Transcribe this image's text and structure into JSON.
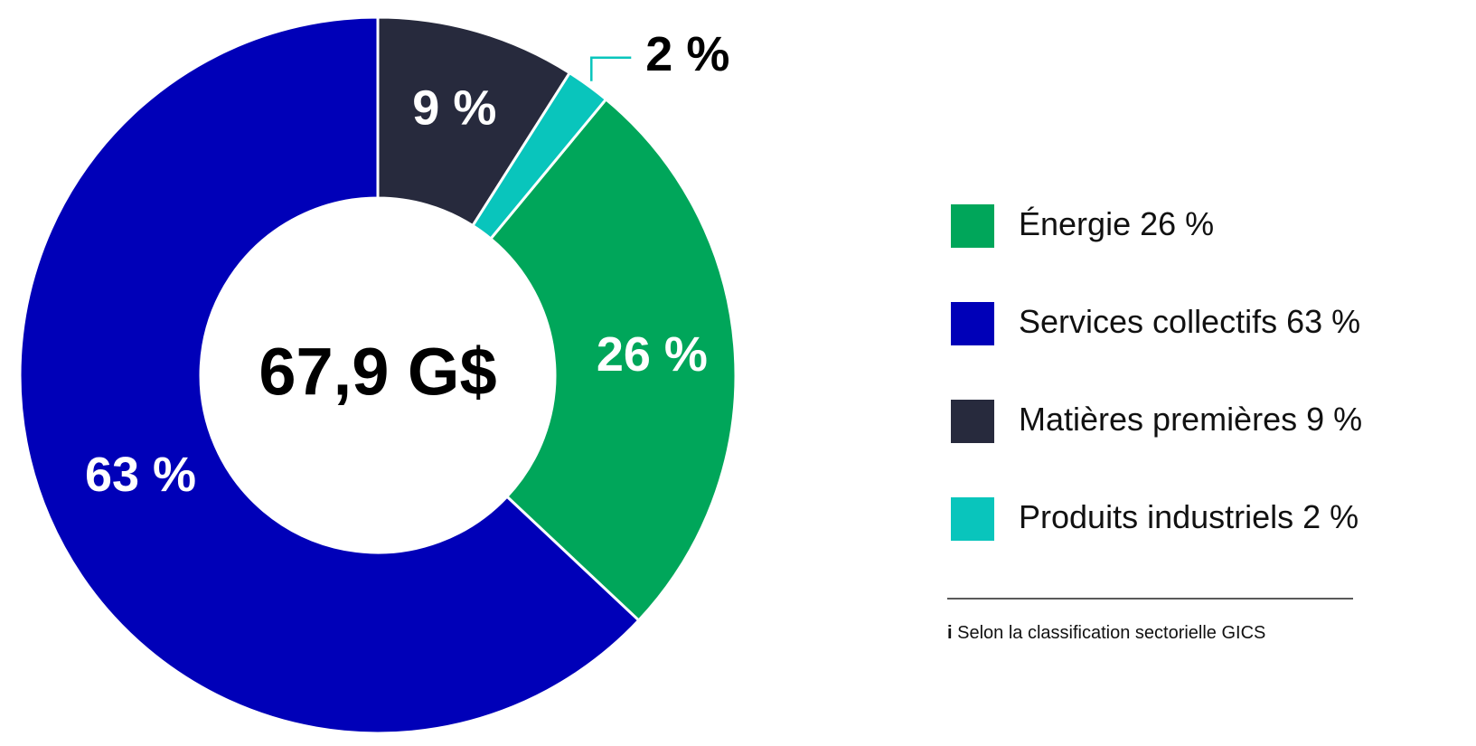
{
  "chart_data": {
    "type": "donut",
    "center_label": "67,9 G$",
    "categories": [
      "Énergie",
      "Services collectifs",
      "Matières premières",
      "Produits industriels"
    ],
    "values": [
      26,
      63,
      9,
      2
    ],
    "value_labels": [
      "26 %",
      "63 %",
      "9 %",
      "2 %"
    ],
    "colors": [
      "#00a65a",
      "#0000b8",
      "#272a3d",
      "#09c5bc"
    ],
    "legend": "right",
    "footnote_marker": "i",
    "footnote": "Selon la classification sectorielle GICS"
  }
}
